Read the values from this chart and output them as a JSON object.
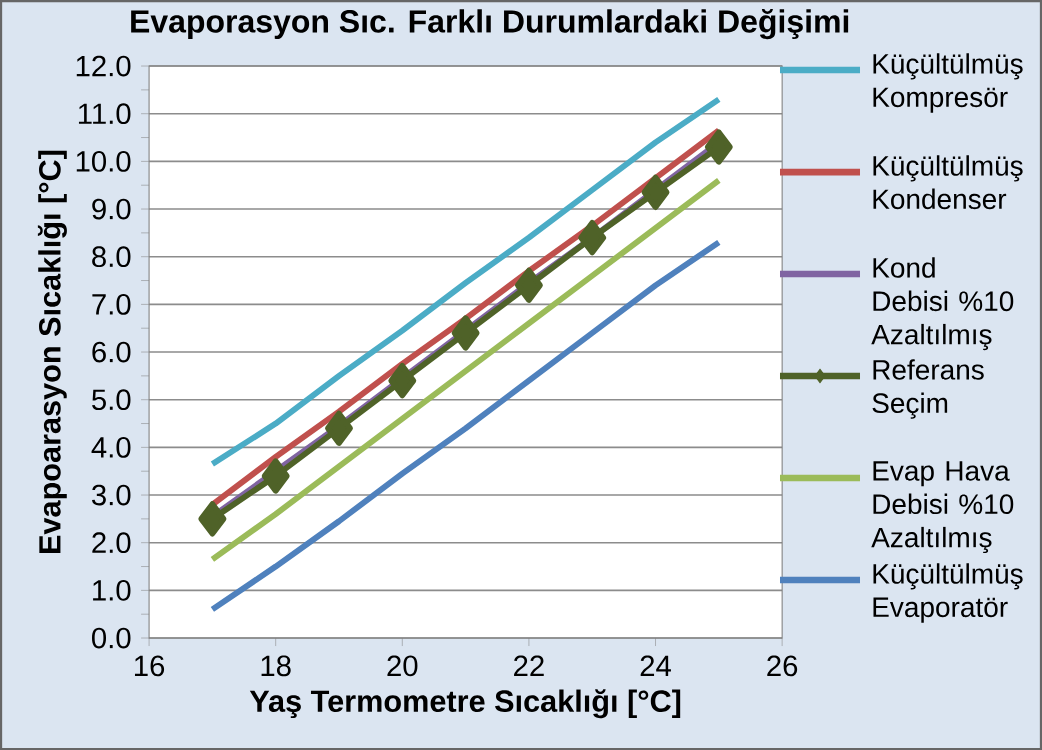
{
  "chart_data": {
    "type": "line",
    "title": "Evaporasyon Sıc. Farklı Durumlardaki Değişimi",
    "xlabel": "Yaş Termometre Sıcaklığı [°C]",
    "ylabel": "Evapoarasyon Sıcaklığı [°C]",
    "x": [
      17,
      18,
      19,
      20,
      21,
      22,
      23,
      24,
      25
    ],
    "series": [
      {
        "name": "Küçültülmüş Kompresör",
        "color": "#4bacc6",
        "marker": "none",
        "values": [
          3.65,
          4.5,
          5.5,
          6.45,
          7.45,
          8.4,
          9.4,
          10.4,
          11.3
        ]
      },
      {
        "name": "Küçültülmüş Kondenser",
        "color": "#c0504d",
        "marker": "none",
        "values": [
          2.8,
          3.8,
          4.75,
          5.75,
          6.7,
          7.7,
          8.65,
          9.65,
          10.65
        ]
      },
      {
        "name": "Kond Debisi %10 Azaltılmış",
        "color": "#8064a2",
        "marker": "none",
        "values": [
          2.55,
          3.5,
          4.45,
          5.45,
          6.45,
          7.45,
          8.4,
          9.4,
          10.4
        ]
      },
      {
        "name": "Referans Seçim",
        "color": "#4f6228",
        "marker": "diamond",
        "values": [
          2.5,
          3.4,
          4.4,
          5.4,
          6.4,
          7.4,
          8.4,
          9.35,
          10.3
        ]
      },
      {
        "name": "Evap Hava Debisi %10 Azaltılmış",
        "color": "#9bbb59",
        "marker": "none",
        "values": [
          1.65,
          2.6,
          3.6,
          4.6,
          5.6,
          6.6,
          7.6,
          8.6,
          9.6
        ]
      },
      {
        "name": "Küçültülmüş Evaporatör",
        "color": "#4f81bd",
        "marker": "none",
        "values": [
          0.6,
          1.5,
          2.45,
          3.45,
          4.4,
          5.4,
          6.4,
          7.4,
          8.3
        ]
      }
    ],
    "xlim": [
      16,
      26
    ],
    "xticks": [
      16,
      18,
      20,
      22,
      24,
      26
    ],
    "ylim": [
      0,
      12
    ],
    "yticks": [
      {
        "value": 0,
        "label": "0.0"
      },
      {
        "value": 1,
        "label": "1.0"
      },
      {
        "value": 2,
        "label": "2.0"
      },
      {
        "value": 3,
        "label": "3.0"
      },
      {
        "value": 4,
        "label": "4.0"
      },
      {
        "value": 5,
        "label": "5.0"
      },
      {
        "value": 6,
        "label": "6.0"
      },
      {
        "value": 7,
        "label": "7.0"
      },
      {
        "value": 8,
        "label": "8.0"
      },
      {
        "value": 9,
        "label": "9.0"
      },
      {
        "value": 10,
        "label": "10.0"
      },
      {
        "value": 11,
        "label": "11.0"
      },
      {
        "value": 12,
        "label": "12.0"
      }
    ],
    "grid": "y",
    "legend": "right",
    "line_style": "solid"
  }
}
